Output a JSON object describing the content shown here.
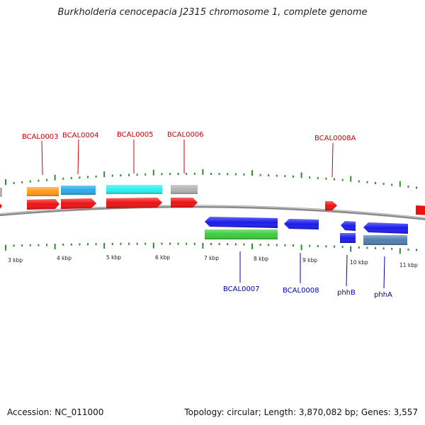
{
  "title": "Burkholderia cenocepacia J2315 chromosome 1, complete genome",
  "footer": {
    "accession": "Accession: NC_011000",
    "summary": "Topology: circular; Length: 3,870,082 bp; Genes: 3,557"
  },
  "colors": {
    "backbone": "#8a8a8a",
    "tick": "#2e8b2e",
    "label_forward": "#cc0000",
    "label_reverse": "#0000aa",
    "cds_forward": "#ee1111",
    "cds_reverse": "#1a1aee",
    "orange": "#ff9a1a",
    "sky": "#29a9e8",
    "cyan": "#27f0f0",
    "grey": "#b2b2b2",
    "green": "#3ccc3c",
    "steel": "#4f7fb0"
  },
  "tick_labels": [
    "3 kbp",
    "4 kbp",
    "5 kbp",
    "6 kbp",
    "7 kbp",
    "8 kbp",
    "9 kbp",
    "10 kbp",
    "11 kbp"
  ],
  "gene_labels_forward": [
    "BCAL0003",
    "BCAL0004",
    "BCAL0005",
    "BCAL0006",
    "BCAL0008A"
  ],
  "gene_labels_reverse": [
    "BCAL0007",
    "BCAL0008",
    "phhB",
    "phhA"
  ]
}
